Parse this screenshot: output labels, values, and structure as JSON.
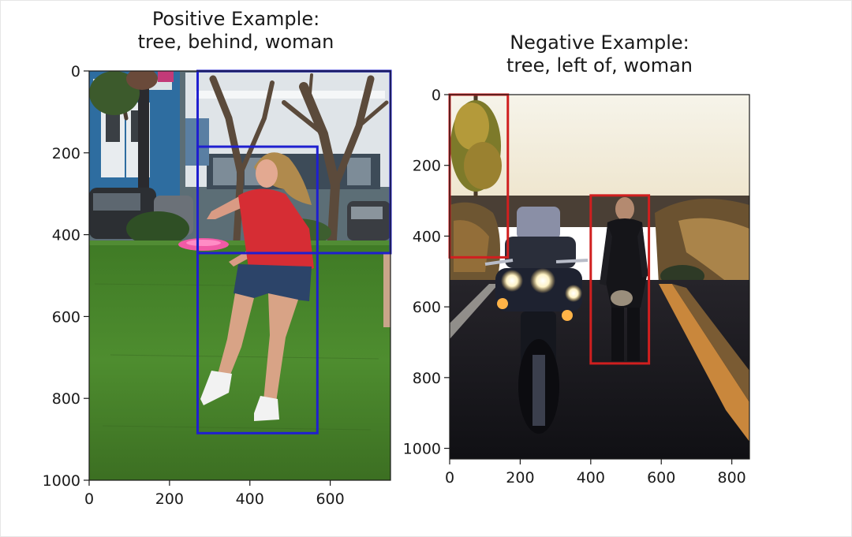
{
  "panels": [
    {
      "id": "positive",
      "title": "Positive Example:\ntree, behind, woman",
      "subject": "tree",
      "predicate": "behind",
      "object": "woman",
      "box_color": "#1f1fd0",
      "x_range": [
        0,
        750
      ],
      "y_range": [
        1000,
        0
      ],
      "x_ticks": [
        "0",
        "200",
        "400",
        "600"
      ],
      "y_ticks": [
        "0",
        "200",
        "400",
        "600",
        "800",
        "1000"
      ],
      "boxes": [
        {
          "label": "tree",
          "x0": 270,
          "y0": 0,
          "x1": 750,
          "y1": 445
        },
        {
          "label": "woman",
          "x0": 270,
          "y0": 185,
          "x1": 568,
          "y1": 885
        }
      ]
    },
    {
      "id": "negative",
      "title": "Negative Example:\ntree, left of, woman",
      "subject": "tree",
      "predicate": "left of",
      "object": "woman",
      "box_color": "#d01f1f",
      "x_range": [
        0,
        850
      ],
      "y_range": [
        1030,
        0
      ],
      "x_ticks": [
        "0",
        "200",
        "400",
        "600",
        "800"
      ],
      "y_ticks": [
        "0",
        "200",
        "400",
        "600",
        "800",
        "1000"
      ],
      "boxes": [
        {
          "label": "tree",
          "x0": 0,
          "y0": 0,
          "x1": 165,
          "y1": 460
        },
        {
          "label": "woman",
          "x0": 400,
          "y0": 285,
          "x1": 565,
          "y1": 760
        }
      ]
    }
  ],
  "photo_colors": {
    "grass": "#4f8a2e",
    "sky": "#f4f1e6",
    "road": "#17161c",
    "shirt": "#d62d34",
    "frisbee": "#f15aa6"
  }
}
